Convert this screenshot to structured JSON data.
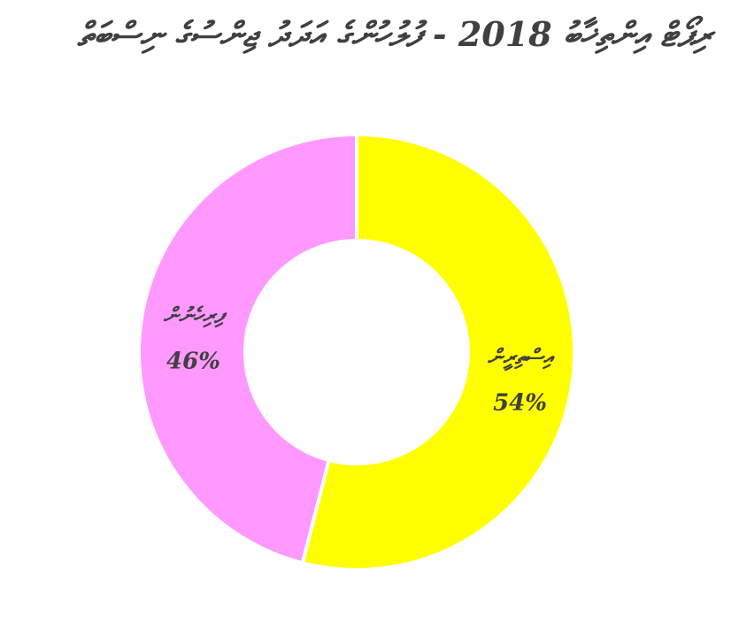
{
  "chart_data": {
    "type": "pie",
    "style": "donut",
    "title": "ރިޕޯޓް އިންތިޚާބު 2018 - ފުލުހުންގެ އަދަދު ޖިންސުގެ ނިސްބަތް",
    "categories": [
      "އިސްތިރީން",
      "ފިރިހެނުން"
    ],
    "values": [
      54,
      46
    ],
    "labels": [
      "54%",
      "46%"
    ],
    "colors": [
      "#ffff00",
      "#ff99ff"
    ],
    "legend": "none",
    "grid": false
  }
}
